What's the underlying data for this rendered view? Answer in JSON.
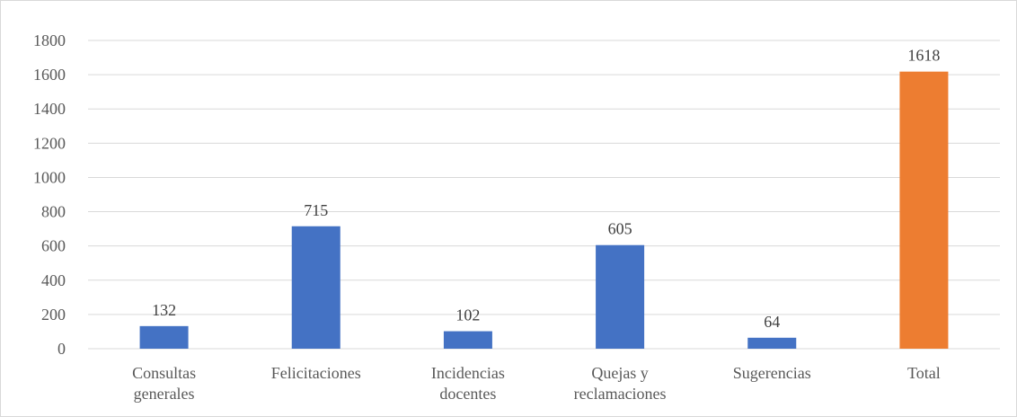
{
  "chart_data": {
    "type": "bar",
    "categories": [
      [
        "Consultas",
        "generales"
      ],
      [
        "Felicitaciones"
      ],
      [
        "Incidencias",
        "docentes"
      ],
      [
        "Quejas y",
        "reclamaciones"
      ],
      [
        "Sugerencias"
      ],
      [
        "Total"
      ]
    ],
    "values": [
      132,
      715,
      102,
      605,
      64,
      1618
    ],
    "data_labels": [
      "132",
      "715",
      "102",
      "605",
      "64",
      "1618"
    ],
    "bar_colors": [
      "#4472C4",
      "#4472C4",
      "#4472C4",
      "#4472C4",
      "#4472C4",
      "#ED7D31"
    ],
    "yticks": [
      "0",
      "200",
      "400",
      "600",
      "800",
      "1000",
      "1200",
      "1400",
      "1600",
      "1800"
    ],
    "ylim": [
      0,
      1800
    ],
    "grid": true,
    "legend": "none",
    "title": "",
    "xlabel": "",
    "ylabel": ""
  },
  "colors": {
    "grid": "#d9d9d9",
    "axis": "#d9d9d9",
    "primary_bar": "#4472C4",
    "total_bar": "#ED7D31"
  }
}
